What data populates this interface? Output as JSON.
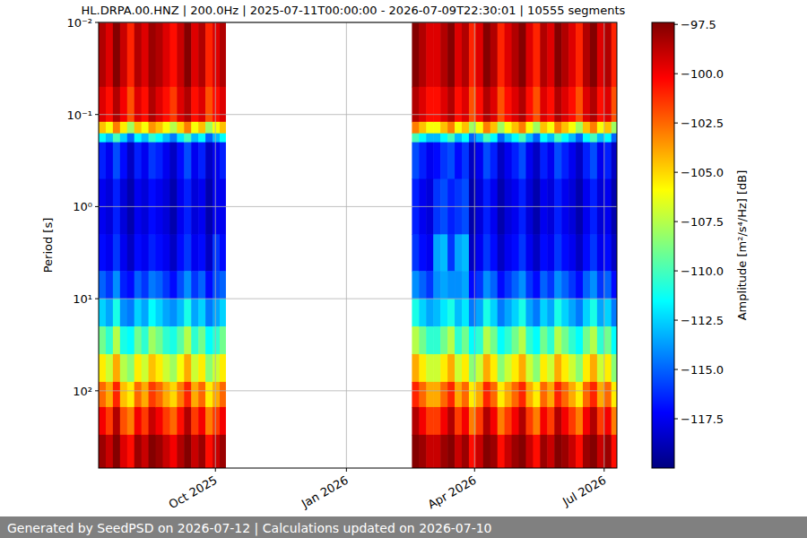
{
  "chart_data": {
    "type": "heatmap",
    "title": "HL.DRPA.00.HNZ | 200.0Hz | 2025-07-11T00:00:00 - 2026-07-09T22:30:01 | 10555 segments",
    "ylabel": "Period [s]",
    "log": "y",
    "grid": true,
    "xlim": [
      "2025-07-11T00:00:00",
      "2026-07-09T22:30:01"
    ],
    "xticks": [
      {
        "value": "2025-10-01",
        "label": "Oct 2025"
      },
      {
        "value": "2026-01-01",
        "label": "Jan 2026"
      },
      {
        "value": "2026-04-01",
        "label": "Apr 2026"
      },
      {
        "value": "2026-07-01",
        "label": "Jul 2026"
      }
    ],
    "ylim": [
      690,
      0.01
    ],
    "yticks": [
      {
        "value": 0.01,
        "label": "10⁻²"
      },
      {
        "value": 0.1,
        "label": "10⁻¹"
      },
      {
        "value": 1,
        "label": "10⁰"
      },
      {
        "value": 10,
        "label": "10¹"
      },
      {
        "value": 100,
        "label": "10²"
      }
    ],
    "x_edges": [
      "2025-07-11",
      "2025-07-16",
      "2025-07-21",
      "2025-07-26",
      "2025-07-31",
      "2025-08-05",
      "2025-08-10",
      "2025-08-15",
      "2025-08-20",
      "2025-08-25",
      "2025-08-30",
      "2025-09-04",
      "2025-09-09",
      "2025-09-14",
      "2025-09-19",
      "2025-09-24",
      "2025-09-29",
      "2025-10-04",
      "2025-10-08",
      "2026-02-16",
      "2026-02-21",
      "2026-02-26",
      "2026-03-03",
      "2026-03-08",
      "2026-03-13",
      "2026-03-18",
      "2026-03-23",
      "2026-03-28",
      "2026-04-02",
      "2026-04-07",
      "2026-04-12",
      "2026-04-17",
      "2026-04-22",
      "2026-04-27",
      "2026-05-02",
      "2026-05-07",
      "2026-05-12",
      "2026-05-17",
      "2026-05-22",
      "2026-05-27",
      "2026-06-01",
      "2026-06-06",
      "2026-06-11",
      "2026-06-16",
      "2026-06-21",
      "2026-06-26",
      "2026-07-01",
      "2026-07-06",
      "2026-07-09T22:30:01"
    ],
    "y_edges": [
      0.01,
      0.05,
      0.12,
      0.16,
      0.2,
      0.5,
      2,
      5,
      10,
      20,
      40,
      80,
      150,
      300,
      690
    ],
    "values": [
      [
        -98.5,
        -99.5,
        -104.5,
        -111.5,
        -116.5,
        -117.5,
        -117,
        -115,
        -112.5,
        -109,
        -105.5,
        -102.5,
        -100,
        -98
      ],
      [
        -99.5,
        -100.5,
        -106,
        -113,
        -117.5,
        -118,
        -117.5,
        -116,
        -113.5,
        -110.5,
        -107,
        -104,
        -101.5,
        -99
      ],
      [
        -97.5,
        -98.5,
        -103,
        -110,
        -115.5,
        -116.5,
        -116,
        -114,
        -111,
        -107.5,
        -104,
        -101,
        -98.5,
        -97.5
      ],
      [
        -99,
        -100,
        -105.5,
        -112.5,
        -117,
        -118,
        -117.5,
        -116.5,
        -114,
        -111,
        -107.5,
        -104.5,
        -102,
        -99.5
      ],
      [
        -101,
        -102,
        -108,
        -115,
        -118.5,
        -119,
        -118.5,
        -117,
        -114.5,
        -111.5,
        -108.5,
        -105.5,
        -103,
        -100.5
      ],
      [
        -98.5,
        -99.5,
        -104.5,
        -111.5,
        -116.5,
        -117.5,
        -117,
        -115,
        -112.5,
        -109,
        -105.5,
        -102.5,
        -100,
        -98
      ],
      [
        -99.5,
        -100.5,
        -106,
        -113,
        -117.5,
        -118,
        -117.5,
        -116,
        -113.5,
        -110.5,
        -107,
        -104,
        -101.5,
        -99
      ],
      [
        -98,
        -98.5,
        -103.5,
        -110.5,
        -116,
        -117,
        -116.5,
        -114.5,
        -111.5,
        -108,
        -104.5,
        -101.5,
        -99,
        -97.5
      ],
      [
        -98.5,
        -99.5,
        -104.5,
        -111.5,
        -116.5,
        -117.5,
        -117,
        -115,
        -112.5,
        -109,
        -105.5,
        -102.5,
        -100,
        -98
      ],
      [
        -99.5,
        -100.5,
        -106,
        -113,
        -117.5,
        -118,
        -117.5,
        -116,
        -113.5,
        -110.5,
        -107,
        -104,
        -101.5,
        -99
      ],
      [
        -100.5,
        -101.5,
        -107.5,
        -114.5,
        -118.5,
        -119,
        -118.5,
        -117,
        -114,
        -111,
        -108,
        -105,
        -102.5,
        -100
      ],
      [
        -99,
        -99.5,
        -105,
        -112,
        -117,
        -117.5,
        -117,
        -115.5,
        -113,
        -109.5,
        -106,
        -103,
        -100.5,
        -98.5
      ],
      [
        -97.5,
        -98.5,
        -103,
        -110,
        -115.5,
        -116.5,
        -116,
        -114,
        -111,
        -107.5,
        -104,
        -101,
        -98.5,
        -97.5
      ],
      [
        -99.5,
        -100.5,
        -106,
        -113,
        -117.5,
        -118,
        -117.5,
        -116,
        -113.5,
        -110.5,
        -107,
        -104,
        -101.5,
        -99
      ],
      [
        -98.5,
        -99.5,
        -104.5,
        -111.5,
        -116.5,
        -117.5,
        -117,
        -115,
        -112.5,
        -109,
        -105.5,
        -102.5,
        -100,
        -98
      ],
      [
        -101,
        -102,
        -108,
        -115,
        -118.5,
        -119,
        -118.5,
        -117,
        -114.5,
        -111.5,
        -108.5,
        -105.5,
        -103,
        -100.5
      ],
      [
        -99.5,
        -100.5,
        -106,
        -113,
        -117.5,
        -117.5,
        -116,
        -115.5,
        -113.5,
        -110.5,
        -107,
        -104,
        -101.5,
        -99
      ],
      [
        -98.5,
        -99.5,
        -104.5,
        -111.5,
        -116.5,
        -117.5,
        -117,
        -115,
        -112.5,
        -109,
        -105.5,
        -102.5,
        -100,
        -98
      ],
      [
        null,
        null,
        null,
        null,
        null,
        null,
        null,
        null,
        null,
        null,
        null,
        null,
        null,
        null
      ],
      [
        -97.5,
        -98.5,
        -103,
        -110,
        -115.5,
        -116.5,
        -116,
        -114,
        -111,
        -107.5,
        -104,
        -101,
        -98.5,
        -97.5
      ],
      [
        -98.5,
        -99.5,
        -104.5,
        -111.5,
        -116.5,
        -117.5,
        -117,
        -115,
        -112.5,
        -109,
        -105.5,
        -102.5,
        -100,
        -98
      ],
      [
        -99.5,
        -100.5,
        -106,
        -113,
        -117.5,
        -118,
        -117.5,
        -116,
        -113.5,
        -110.5,
        -107,
        -104,
        -101.5,
        -99
      ],
      [
        -99.5,
        -100.5,
        -106,
        -113,
        -117,
        -116,
        -113.5,
        -114,
        -113,
        -110.5,
        -107,
        -104,
        -101.5,
        -99
      ],
      [
        -98.5,
        -99.5,
        -104.5,
        -111.5,
        -116,
        -115.5,
        -113,
        -113.5,
        -112,
        -109,
        -105.5,
        -102.5,
        -100,
        -98
      ],
      [
        -97.5,
        -98.5,
        -103,
        -110,
        -115.5,
        -116.5,
        -116,
        -114,
        -111,
        -107.5,
        -104,
        -101,
        -98.5,
        -97.5
      ],
      [
        -99.5,
        -100.5,
        -106,
        -113,
        -117,
        -116,
        -113.5,
        -114,
        -113,
        -110.5,
        -107,
        -104,
        -101.5,
        -99
      ],
      [
        -98.5,
        -99.5,
        -104.5,
        -111.5,
        -116,
        -115.5,
        -113,
        -113.5,
        -112,
        -109,
        -105.5,
        -102.5,
        -100,
        -98
      ],
      [
        -101,
        -102,
        -108,
        -115,
        -118.5,
        -119,
        -118.5,
        -117,
        -114.5,
        -111.5,
        -108.5,
        -105.5,
        -103,
        -100.5
      ],
      [
        -99.5,
        -100.5,
        -106,
        -113,
        -117.5,
        -118,
        -117.5,
        -116,
        -113.5,
        -110.5,
        -107,
        -104,
        -101.5,
        -99
      ],
      [
        -97.5,
        -98.5,
        -103,
        -110,
        -115.5,
        -116.5,
        -116,
        -114,
        -111,
        -107.5,
        -104,
        -101,
        -98.5,
        -97.5
      ],
      [
        -98.5,
        -99.5,
        -104.5,
        -111.5,
        -116.5,
        -117.5,
        -117,
        -115,
        -112.5,
        -109,
        -105.5,
        -102.5,
        -100,
        -98
      ],
      [
        -101,
        -102,
        -108,
        -115,
        -118.5,
        -119,
        -118.5,
        -117,
        -114.5,
        -111.5,
        -108.5,
        -105.5,
        -103,
        -100.5
      ],
      [
        -99.5,
        -100.5,
        -106,
        -113,
        -117.5,
        -118,
        -117.5,
        -116,
        -113.5,
        -110.5,
        -107,
        -104,
        -101.5,
        -99
      ],
      [
        -98.5,
        -99.5,
        -104.5,
        -111.5,
        -116.5,
        -117.5,
        -117,
        -115,
        -112.5,
        -109,
        -105.5,
        -102.5,
        -100,
        -98
      ],
      [
        -97.5,
        -98.5,
        -103,
        -110,
        -115.5,
        -116.5,
        -116,
        -114,
        -111,
        -107.5,
        -104,
        -101,
        -98.5,
        -97.5
      ],
      [
        -99.5,
        -100.5,
        -106,
        -113,
        -117.5,
        -118,
        -117.5,
        -116,
        -113.5,
        -110.5,
        -107,
        -104,
        -101.5,
        -99
      ],
      [
        -101,
        -102,
        -108,
        -115,
        -118.5,
        -119,
        -118.5,
        -117,
        -114.5,
        -111.5,
        -108.5,
        -105.5,
        -103,
        -100.5
      ],
      [
        -98.5,
        -99.5,
        -104.5,
        -111.5,
        -116.5,
        -117.5,
        -117,
        -115,
        -112.5,
        -109,
        -105.5,
        -102.5,
        -100,
        -98
      ],
      [
        -99.5,
        -100.5,
        -106,
        -113,
        -117.5,
        -118,
        -117.5,
        -116,
        -113.5,
        -110.5,
        -107,
        -104,
        -101.5,
        -99
      ],
      [
        -97.5,
        -98.5,
        -103,
        -110,
        -115.5,
        -116.5,
        -116,
        -114,
        -111,
        -107.5,
        -104,
        -101,
        -98.5,
        -97.5
      ],
      [
        -98.5,
        -99.5,
        -104.5,
        -111.5,
        -116.5,
        -117.5,
        -117,
        -115,
        -112.5,
        -109,
        -105.5,
        -102.5,
        -100,
        -98
      ],
      [
        -99.5,
        -100.5,
        -106,
        -113,
        -117.5,
        -118,
        -117.5,
        -116,
        -113.5,
        -110.5,
        -107,
        -104,
        -101.5,
        -99
      ],
      [
        -101,
        -102,
        -108,
        -115,
        -118.5,
        -119,
        -118.5,
        -117,
        -114.5,
        -111.5,
        -108.5,
        -105.5,
        -103,
        -100.5
      ],
      [
        -98.5,
        -99.5,
        -104.5,
        -111.5,
        -116.5,
        -117.5,
        -117,
        -115,
        -112.5,
        -109,
        -105.5,
        -102.5,
        -100,
        -98
      ],
      [
        -97.5,
        -98.5,
        -103,
        -110,
        -115.5,
        -116.5,
        -116,
        -114,
        -111,
        -107.5,
        -104,
        -101,
        -98.5,
        -97.5
      ],
      [
        -99.5,
        -100.5,
        -106,
        -113,
        -117.5,
        -118,
        -117.5,
        -116,
        -113.5,
        -110.5,
        -107,
        -104,
        -101.5,
        -99
      ],
      [
        -98.5,
        -99.5,
        -104.5,
        -111.5,
        -116.5,
        -117.5,
        -117,
        -115,
        -112.5,
        -109,
        -105.5,
        -102.5,
        -100,
        -98
      ],
      [
        -101,
        -102,
        -108,
        -115,
        -118.5,
        -119,
        -118.5,
        -117,
        -114.5,
        -111.5,
        -108.5,
        -105.5,
        -103,
        -100.5
      ]
    ],
    "colorbar": {
      "label": "Amplitude [m²/s⁴/Hz] [dB]",
      "range": [
        -120,
        -97.4
      ],
      "ticks": [
        {
          "value": -117.5,
          "label": "−117.5"
        },
        {
          "value": -115,
          "label": "−115.0"
        },
        {
          "value": -112.5,
          "label": "−112.5"
        },
        {
          "value": -110,
          "label": "−110.0"
        },
        {
          "value": -107.5,
          "label": "−107.5"
        },
        {
          "value": -105,
          "label": "−105.0"
        },
        {
          "value": -102.5,
          "label": "−102.5"
        },
        {
          "value": -100,
          "label": "−100.0"
        },
        {
          "value": -97.5,
          "label": "−97.5"
        }
      ]
    }
  },
  "footer": {
    "text": "Generated by SeedPSD on 2026-07-12 | Calculations updated on 2026-07-10"
  }
}
